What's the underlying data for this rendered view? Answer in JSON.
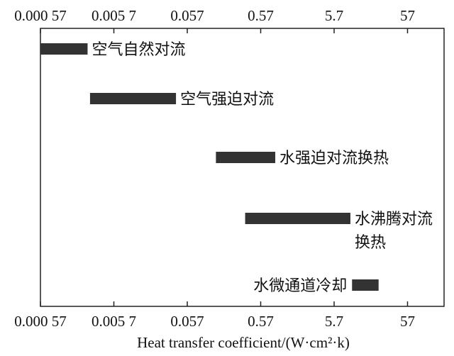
{
  "chart_data": {
    "type": "bar",
    "orientation": "horizontal-range",
    "x_scale": "log",
    "xlim": [
      0.00057,
      130
    ],
    "x_ticks": [
      0.00057,
      0.0057,
      0.057,
      0.57,
      5.7,
      57
    ],
    "x_tick_labels": [
      "0.000 57",
      "0.005 7",
      "0.057",
      "0.57",
      "5.7",
      "57"
    ],
    "xlabel": "Heat transfer coefficient/(W·cm²·k)",
    "grid": false,
    "bar_color": "#333333",
    "bars": [
      {
        "label_lines": [
          "空气自然对流"
        ],
        "x_start": 0.00057,
        "x_end": 0.0025
      },
      {
        "label_lines": [
          "空气强迫对流"
        ],
        "x_start": 0.0027,
        "x_end": 0.04
      },
      {
        "label_lines": [
          "水强迫对流换热"
        ],
        "x_start": 0.14,
        "x_end": 0.9
      },
      {
        "label_lines": [
          "水沸腾对流",
          "换热"
        ],
        "x_start": 0.35,
        "x_end": 9.5
      },
      {
        "label_lines": [
          "水微通道冷却"
        ],
        "x_start": 10,
        "x_end": 23
      }
    ]
  }
}
